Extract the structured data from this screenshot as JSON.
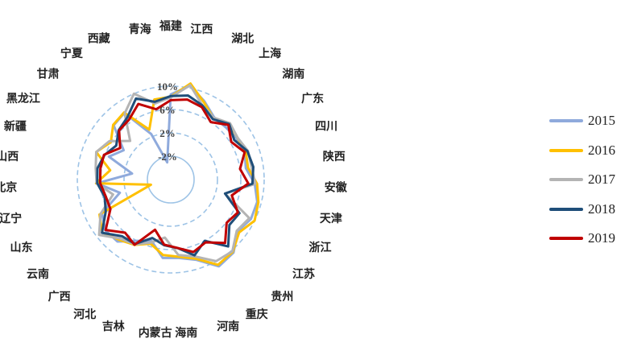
{
  "chart_data": {
    "type": "radar",
    "categories": [
      "福建",
      "江西",
      "湖北",
      "上海",
      "湖南",
      "广东",
      "四川",
      "陕西",
      "安徽",
      "天津",
      "浙江",
      "江苏",
      "贵州",
      "重庆",
      "河南",
      "海南",
      "内蒙古",
      "吉林",
      "河北",
      "广西",
      "云南",
      "山东",
      "辽宁",
      "北京",
      "山西",
      "新疆",
      "黑龙江",
      "甘肃",
      "宁夏",
      "西藏",
      "青海"
    ],
    "rlim": [
      -6,
      14
    ],
    "rings": [
      -2,
      2,
      6,
      10
    ],
    "tick_labels": [
      "-2%",
      "2%",
      "6%",
      "10%"
    ],
    "ring_styles": [
      "solid",
      "dashed",
      "dashed",
      "dashed"
    ],
    "series": [
      {
        "name": "2015",
        "color": "#8faadc",
        "values": [
          8.6,
          10.4,
          8.6,
          7.0,
          7.0,
          7.3,
          7.5,
          7.0,
          8.4,
          9.3,
          9.3,
          8.5,
          10.5,
          11.0,
          8.4,
          7.5,
          7.5,
          5.0,
          6.0,
          8.0,
          8.2,
          7.1,
          3.0,
          6.7,
          0.7,
          5.3,
          3.5,
          7.5,
          7.9,
          2.5,
          -3.0
        ]
      },
      {
        "name": "2016",
        "color": "#ffc000",
        "values": [
          8.2,
          10.8,
          8.4,
          6.8,
          7.9,
          7.5,
          7.7,
          7.4,
          8.8,
          9.5,
          10.0,
          8.8,
          10.3,
          10.7,
          8.2,
          7.3,
          7.0,
          5.5,
          6.8,
          7.6,
          8.8,
          7.6,
          -2.5,
          6.8,
          4.5,
          7.6,
          6.1,
          7.6,
          8.0,
          3.3,
          8.0
        ]
      },
      {
        "name": "2017",
        "color": "#b4b4b4",
        "values": [
          8.1,
          10.5,
          7.8,
          6.9,
          8.0,
          7.5,
          8.1,
          8.0,
          8.5,
          3.6,
          9.0,
          8.3,
          10.2,
          10.0,
          7.8,
          7.0,
          4.0,
          5.3,
          6.7,
          7.3,
          9.5,
          7.4,
          4.2,
          6.7,
          7.0,
          7.6,
          6.4,
          3.6,
          7.8,
          10.0,
          7.3
        ]
      },
      {
        "name": "2018",
        "color": "#1f4e79",
        "values": [
          8.3,
          8.7,
          7.8,
          6.6,
          7.8,
          6.8,
          8.0,
          8.3,
          8.0,
          3.6,
          7.1,
          6.7,
          9.1,
          6.0,
          7.6,
          5.8,
          5.3,
          4.5,
          6.6,
          6.8,
          8.9,
          6.4,
          5.7,
          6.6,
          6.7,
          6.1,
          5.0,
          6.3,
          7.0,
          9.1,
          7.6
        ]
      },
      {
        "name": "2019",
        "color": "#c00000",
        "values": [
          7.6,
          8.0,
          7.5,
          6.0,
          7.6,
          6.2,
          7.5,
          6.0,
          7.3,
          4.8,
          6.8,
          6.1,
          8.3,
          6.3,
          7.0,
          5.8,
          5.2,
          3.0,
          6.8,
          6.0,
          8.1,
          5.5,
          5.5,
          6.1,
          6.2,
          6.2,
          4.2,
          6.2,
          6.5,
          8.1,
          6.3
        ]
      }
    ]
  }
}
